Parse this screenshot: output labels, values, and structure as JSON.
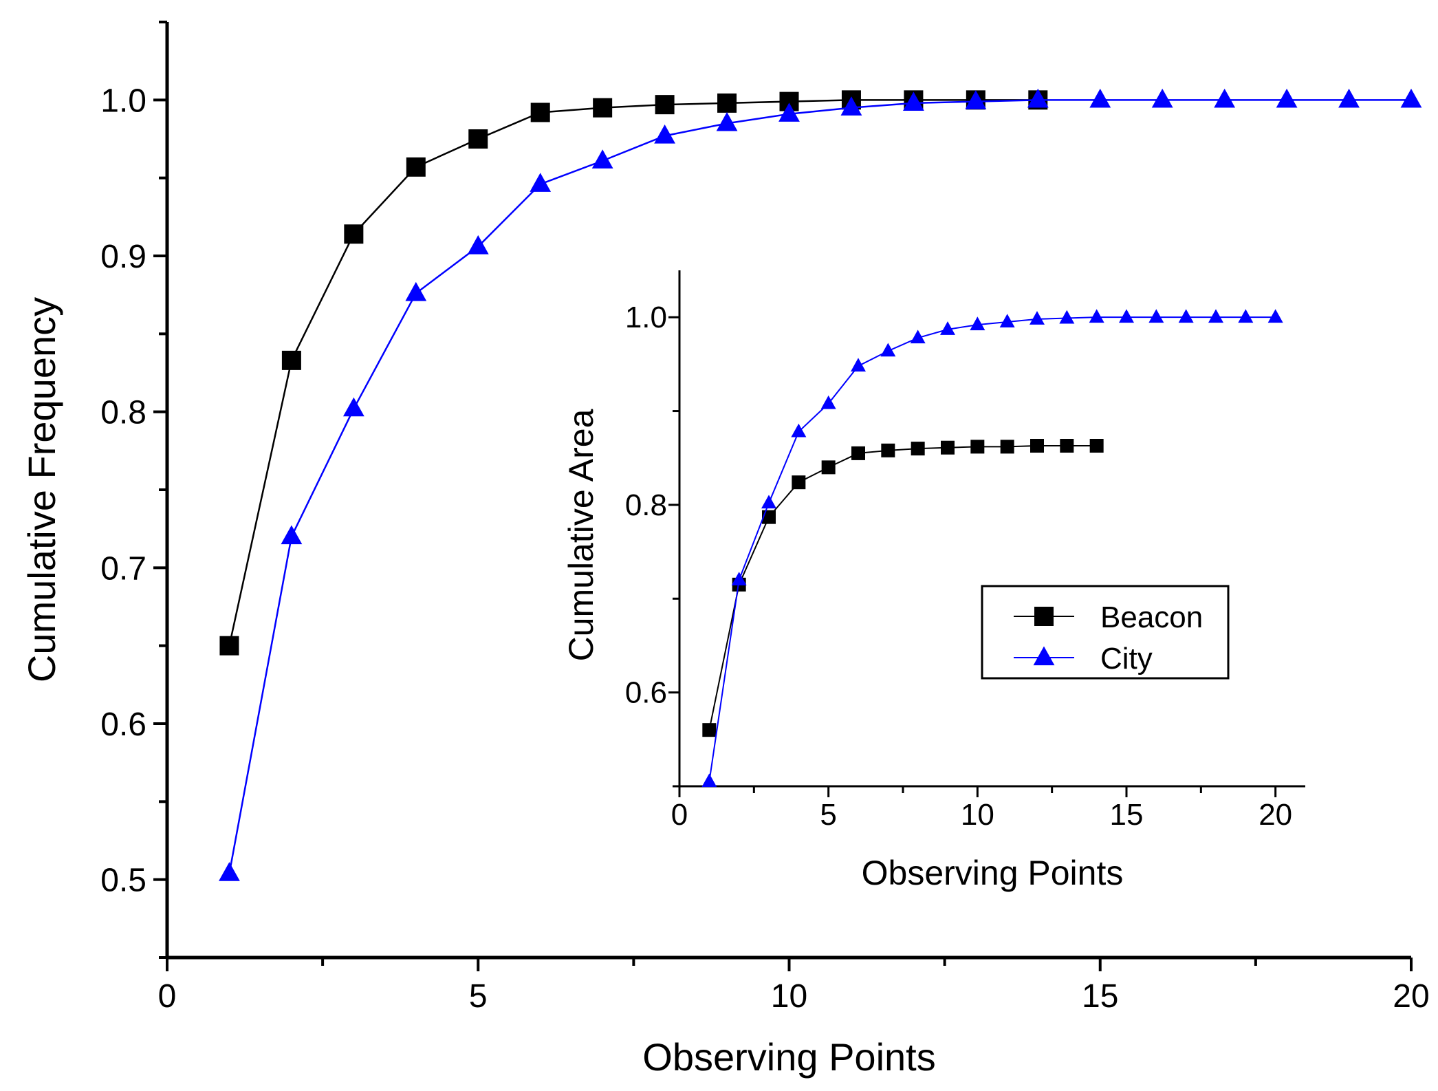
{
  "chart_data": [
    {
      "type": "line",
      "role": "main",
      "title": "",
      "xlabel": "Observing Points",
      "ylabel": "Cumulative Frequency",
      "xlim": [
        0,
        20
      ],
      "ylim": [
        0.45,
        1.05
      ],
      "xticks": [
        0,
        5,
        10,
        15,
        20
      ],
      "xtick_labels": [
        "0",
        "5",
        "10",
        "15",
        "20"
      ],
      "yticks": [
        0.5,
        0.6,
        0.7,
        0.8,
        0.9,
        1.0
      ],
      "ytick_labels": [
        "0.5",
        "0.6",
        "0.7",
        "0.8",
        "0.9",
        "1.0"
      ],
      "grid": false,
      "series": [
        {
          "name": "Beacon",
          "color": "#000000",
          "marker": "square",
          "x": [
            1,
            2,
            3,
            4,
            5,
            6,
            7,
            8,
            9,
            10,
            11,
            12,
            13,
            14
          ],
          "y": [
            0.65,
            0.833,
            0.914,
            0.957,
            0.975,
            0.992,
            0.995,
            0.997,
            0.998,
            0.999,
            1.0,
            1.0,
            1.0,
            1.0
          ]
        },
        {
          "name": "City",
          "color": "#0000ff",
          "marker": "triangle",
          "x": [
            1,
            2,
            3,
            4,
            5,
            6,
            7,
            8,
            9,
            10,
            11,
            12,
            13,
            14,
            15,
            16,
            17,
            18,
            19,
            20
          ],
          "y": [
            0.504,
            0.72,
            0.802,
            0.876,
            0.906,
            0.946,
            0.961,
            0.977,
            0.985,
            0.991,
            0.995,
            0.998,
            0.999,
            1.0,
            1.0,
            1.0,
            1.0,
            1.0,
            1.0,
            1.0
          ]
        }
      ]
    },
    {
      "type": "line",
      "role": "inset",
      "title": "",
      "xlabel": "Observing Points",
      "ylabel": "Cumulative Area",
      "xlim": [
        0,
        21
      ],
      "ylim": [
        0.5,
        1.05
      ],
      "xticks": [
        0,
        5,
        10,
        15,
        20
      ],
      "xtick_labels": [
        "0",
        "5",
        "10",
        "15",
        "20"
      ],
      "yticks": [
        0.6,
        0.8,
        1.0
      ],
      "ytick_labels": [
        "0.6",
        "0.8",
        "1.0"
      ],
      "grid": false,
      "legend": {
        "position": "inside right",
        "entries": [
          "Beacon",
          "City"
        ]
      },
      "series": [
        {
          "name": "Beacon",
          "color": "#000000",
          "marker": "square",
          "x": [
            1,
            2,
            3,
            4,
            5,
            6,
            7,
            8,
            9,
            10,
            11,
            12,
            13,
            14
          ],
          "y": [
            0.56,
            0.715,
            0.787,
            0.824,
            0.84,
            0.855,
            0.858,
            0.86,
            0.861,
            0.862,
            0.862,
            0.863,
            0.863,
            0.863
          ]
        },
        {
          "name": "City",
          "color": "#0000ff",
          "marker": "triangle",
          "x": [
            1,
            2,
            3,
            4,
            5,
            6,
            7,
            8,
            9,
            10,
            11,
            12,
            13,
            14,
            15,
            16,
            17,
            18,
            19,
            20
          ],
          "y": [
            0.505,
            0.72,
            0.802,
            0.878,
            0.908,
            0.948,
            0.964,
            0.978,
            0.987,
            0.992,
            0.995,
            0.998,
            0.999,
            1.0,
            1.0,
            1.0,
            1.0,
            1.0,
            1.0,
            1.0
          ]
        }
      ]
    }
  ]
}
